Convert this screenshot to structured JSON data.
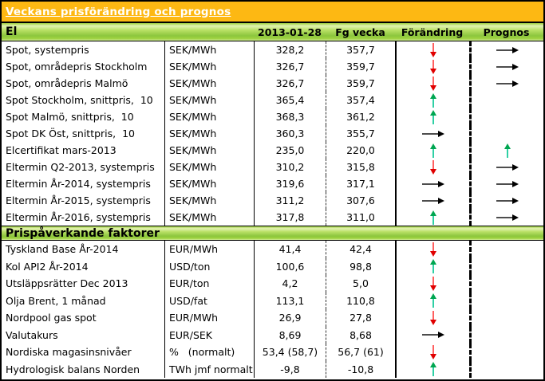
{
  "title": "Veckans prisförändring och prognos",
  "columns": {
    "current": "2013-01-28",
    "previous": "Fg vecka",
    "change": "Förändring",
    "forecast": "Prognos"
  },
  "colors": {
    "title_bg": "#fdb813",
    "section_green": "#8cc63e",
    "arrow_red_stem": "#ff6060",
    "arrow_red_head": "#e00000",
    "arrow_green_stem": "#2fd0a5",
    "arrow_green_head": "#00a651",
    "arrow_neutral_stem": "#4d4d4d",
    "arrow_neutral_head": "#000000"
  },
  "sections": [
    {
      "name": "El",
      "rows": [
        {
          "label": "Spot, systempris",
          "unit": "SEK/MWh",
          "current": "328,2",
          "previous": "357,7",
          "change": "down",
          "forecast": "right"
        },
        {
          "label": "Spot, områdepris Stockholm",
          "unit": "SEK/MWh",
          "current": "326,7",
          "previous": "359,7",
          "change": "down",
          "forecast": "right"
        },
        {
          "label": "Spot, områdepris Malmö",
          "unit": "SEK/MWh",
          "current": "326,7",
          "previous": "359,7",
          "change": "down",
          "forecast": "right"
        },
        {
          "label": "Spot Stockholm, snittpris,  10",
          "unit": "SEK/MWh",
          "current": "365,4",
          "previous": "357,4",
          "change": "up",
          "forecast": null
        },
        {
          "label": "Spot Malmö, snittpris,  10",
          "unit": "SEK/MWh",
          "current": "368,3",
          "previous": "361,2",
          "change": "up",
          "forecast": null
        },
        {
          "label": "Spot DK Öst, snittpris,  10",
          "unit": "SEK/MWh",
          "current": "360,3",
          "previous": "355,7",
          "change": "right",
          "forecast": null
        },
        {
          "label": "Elcertifikat mars-2013",
          "unit": "SEK/MWh",
          "current": "235,0",
          "previous": "220,0",
          "change": "up",
          "forecast": "up"
        },
        {
          "label": "Eltermin Q2-2013, systempris",
          "unit": "SEK/MWh",
          "current": "310,2",
          "previous": "315,8",
          "change": "down",
          "forecast": "right"
        },
        {
          "label": "Eltermin År-2014, systempris",
          "unit": "SEK/MWh",
          "current": "319,6",
          "previous": "317,1",
          "change": "right",
          "forecast": "right"
        },
        {
          "label": "Eltermin År-2015, systempris",
          "unit": "SEK/MWh",
          "current": "311,2",
          "previous": "307,6",
          "change": "right",
          "forecast": "right"
        },
        {
          "label": "Eltermin År-2016, systempris",
          "unit": "SEK/MWh",
          "current": "317,8",
          "previous": "311,0",
          "change": "up",
          "forecast": "right"
        }
      ]
    },
    {
      "name": "Prispåverkande faktorer",
      "rows": [
        {
          "label": "Tyskland Base År-2014",
          "unit": "EUR/MWh",
          "current": "41,4",
          "previous": "42,4",
          "change": "down",
          "forecast": null
        },
        {
          "label": "Kol API2 År-2014",
          "unit": "USD/ton",
          "current": "100,6",
          "previous": "98,8",
          "change": "up",
          "forecast": null
        },
        {
          "label": "Utsläppsrätter Dec 2013",
          "unit": "EUR/ton",
          "current": "4,2",
          "previous": "5,0",
          "change": "down",
          "forecast": null
        },
        {
          "label": "Olja Brent, 1 månad",
          "unit": "USD/fat",
          "current": "113,1",
          "previous": "110,8",
          "change": "up",
          "forecast": null
        },
        {
          "label": "Nordpool gas spot",
          "unit": "EUR/MWh",
          "current": "26,9",
          "previous": "27,8",
          "change": "down",
          "forecast": null
        },
        {
          "label": "Valutakurs",
          "unit": "EUR/SEK",
          "current": "8,69",
          "previous": "8,68",
          "change": "right",
          "forecast": null
        },
        {
          "label": "Nordiska magasinsnivåer",
          "unit": "%   (normalt)",
          "current": "53,4 (58,7)",
          "previous": "56,7 (61)",
          "change": "down",
          "forecast": null
        },
        {
          "label": "Hydrologisk balans Norden",
          "unit": "TWh jmf normalt",
          "current": "-9,8",
          "previous": "-10,8",
          "change": "up",
          "forecast": null
        }
      ]
    }
  ]
}
